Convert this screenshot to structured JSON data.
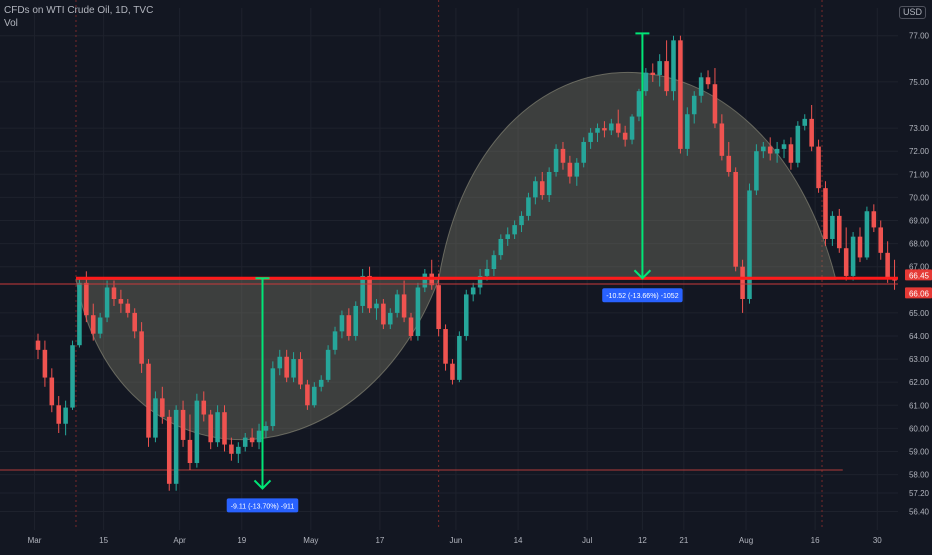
{
  "legend": {
    "title": "CFDs on WTI Crude Oil, 1D, TVC",
    "vol_label": "Vol"
  },
  "currency": "USD",
  "colors": {
    "bg": "#131722",
    "up": "#26a69a",
    "down": "#ef5350",
    "neckline": "#ff1a1a",
    "measure": "#00e676",
    "shape_fill": "#8c8a74",
    "label_bg": "#2962ff",
    "grid": "#1e222d"
  },
  "chart_data": {
    "type": "candlestick",
    "y_axis": {
      "min": 55.6,
      "max": 78.2,
      "ticks": [
        77.0,
        75.0,
        73.0,
        72.0,
        71.0,
        70.0,
        69.0,
        68.0,
        67.0,
        65.0,
        64.0,
        63.0,
        62.0,
        61.0,
        60.0,
        59.0,
        58.0,
        57.2,
        56.4
      ],
      "tick_labels": [
        "77.00",
        "75.00",
        "73.00",
        "72.00",
        "71.00",
        "70.00",
        "69.00",
        "68.00",
        "67.00",
        "65.00",
        "64.00",
        "63.00",
        "62.00",
        "61.00",
        "60.00",
        "59.00",
        "58.00",
        "57.20",
        "56.40"
      ],
      "price_labels": [
        {
          "value": 66.45,
          "text": "66.45"
        },
        {
          "value": 66.06,
          "text": "66.06"
        }
      ]
    },
    "x_axis": {
      "min": -5,
      "max": 125,
      "ticks": [
        {
          "x": 0,
          "label": "Mar"
        },
        {
          "x": 10,
          "label": "15"
        },
        {
          "x": 21,
          "label": "Apr"
        },
        {
          "x": 30,
          "label": "19"
        },
        {
          "x": 40,
          "label": "May"
        },
        {
          "x": 50,
          "label": "17"
        },
        {
          "x": 61,
          "label": "Jun"
        },
        {
          "x": 70,
          "label": "14"
        },
        {
          "x": 80,
          "label": "Jul"
        },
        {
          "x": 88,
          "label": "12"
        },
        {
          "x": 94,
          "label": "21"
        },
        {
          "x": 103,
          "label": "Aug"
        },
        {
          "x": 113,
          "label": "16"
        },
        {
          "x": 122,
          "label": "30"
        }
      ]
    },
    "candles": [
      [
        63.8,
        64.1,
        63.0,
        63.4
      ],
      [
        63.4,
        63.8,
        61.8,
        62.2
      ],
      [
        62.2,
        62.6,
        60.7,
        61.0
      ],
      [
        61.0,
        61.4,
        59.8,
        60.2
      ],
      [
        60.2,
        61.2,
        59.7,
        60.9
      ],
      [
        60.9,
        63.8,
        60.8,
        63.6
      ],
      [
        63.6,
        66.5,
        63.5,
        66.3
      ],
      [
        66.3,
        66.8,
        64.6,
        64.9
      ],
      [
        64.9,
        65.4,
        63.8,
        64.1
      ],
      [
        64.1,
        65.0,
        63.9,
        64.8
      ],
      [
        64.8,
        66.4,
        64.6,
        66.1
      ],
      [
        66.1,
        66.4,
        65.3,
        65.6
      ],
      [
        65.6,
        66.0,
        65.0,
        65.4
      ],
      [
        65.4,
        65.6,
        64.8,
        65.0
      ],
      [
        65.0,
        65.2,
        63.9,
        64.2
      ],
      [
        64.2,
        64.6,
        62.4,
        62.8
      ],
      [
        62.8,
        63.0,
        59.2,
        59.6
      ],
      [
        59.6,
        61.6,
        59.4,
        61.3
      ],
      [
        61.3,
        61.8,
        60.2,
        60.5
      ],
      [
        60.5,
        60.8,
        57.3,
        57.6
      ],
      [
        57.6,
        61.0,
        57.3,
        60.8
      ],
      [
        60.8,
        61.2,
        59.2,
        59.5
      ],
      [
        59.5,
        60.6,
        58.2,
        58.5
      ],
      [
        58.5,
        61.5,
        58.3,
        61.2
      ],
      [
        61.2,
        61.6,
        60.3,
        60.6
      ],
      [
        60.6,
        60.8,
        59.1,
        59.4
      ],
      [
        59.4,
        61.0,
        59.2,
        60.7
      ],
      [
        60.7,
        61.0,
        59.0,
        59.3
      ],
      [
        59.3,
        59.6,
        58.6,
        58.9
      ],
      [
        58.9,
        59.4,
        58.5,
        59.2
      ],
      [
        59.2,
        59.8,
        59.0,
        59.6
      ],
      [
        59.6,
        60.0,
        59.2,
        59.4
      ],
      [
        59.4,
        60.2,
        59.1,
        59.9
      ],
      [
        59.9,
        60.3,
        59.6,
        60.1
      ],
      [
        60.1,
        62.9,
        59.9,
        62.6
      ],
      [
        62.6,
        63.4,
        62.3,
        63.1
      ],
      [
        63.1,
        63.4,
        62.0,
        62.2
      ],
      [
        62.2,
        63.3,
        62.0,
        63.0
      ],
      [
        63.0,
        63.3,
        61.7,
        61.9
      ],
      [
        61.9,
        62.1,
        60.8,
        61.0
      ],
      [
        61.0,
        62.0,
        60.9,
        61.8
      ],
      [
        61.8,
        62.3,
        61.6,
        62.1
      ],
      [
        62.1,
        63.6,
        62.0,
        63.4
      ],
      [
        63.4,
        64.4,
        63.2,
        64.2
      ],
      [
        64.2,
        65.1,
        63.9,
        64.9
      ],
      [
        64.9,
        65.2,
        63.8,
        64.0
      ],
      [
        64.0,
        65.5,
        63.8,
        65.3
      ],
      [
        65.3,
        66.9,
        65.0,
        66.6
      ],
      [
        66.6,
        67.0,
        65.0,
        65.2
      ],
      [
        65.2,
        65.6,
        64.7,
        65.4
      ],
      [
        65.4,
        65.6,
        64.3,
        64.5
      ],
      [
        64.5,
        65.2,
        64.3,
        65.0
      ],
      [
        65.0,
        66.0,
        64.8,
        65.8
      ],
      [
        65.8,
        66.4,
        64.6,
        64.8
      ],
      [
        64.8,
        65.0,
        63.8,
        64.0
      ],
      [
        64.0,
        66.3,
        63.8,
        66.1
      ],
      [
        66.1,
        66.9,
        65.9,
        66.7
      ],
      [
        66.7,
        67.3,
        66.0,
        66.2
      ],
      [
        66.2,
        66.7,
        64.0,
        64.3
      ],
      [
        64.3,
        64.5,
        62.5,
        62.8
      ],
      [
        62.8,
        63.0,
        61.9,
        62.1
      ],
      [
        62.1,
        64.2,
        62.0,
        64.0
      ],
      [
        64.0,
        66.0,
        63.8,
        65.8
      ],
      [
        65.8,
        66.3,
        65.5,
        66.1
      ],
      [
        66.1,
        66.9,
        65.8,
        66.6
      ],
      [
        66.6,
        67.3,
        66.4,
        66.9
      ],
      [
        66.9,
        67.7,
        66.6,
        67.5
      ],
      [
        67.5,
        68.4,
        67.3,
        68.2
      ],
      [
        68.2,
        68.7,
        67.9,
        68.4
      ],
      [
        68.4,
        69.0,
        68.2,
        68.8
      ],
      [
        68.8,
        69.4,
        68.5,
        69.2
      ],
      [
        69.2,
        70.2,
        69.0,
        70.0
      ],
      [
        70.0,
        70.9,
        69.7,
        70.7
      ],
      [
        70.7,
        71.1,
        69.9,
        70.1
      ],
      [
        70.1,
        71.3,
        69.8,
        71.1
      ],
      [
        71.1,
        72.3,
        70.9,
        72.1
      ],
      [
        72.1,
        72.4,
        71.2,
        71.5
      ],
      [
        71.5,
        71.8,
        70.6,
        70.9
      ],
      [
        70.9,
        71.7,
        70.5,
        71.5
      ],
      [
        71.5,
        72.6,
        71.3,
        72.4
      ],
      [
        72.4,
        73.0,
        72.1,
        72.8
      ],
      [
        72.8,
        73.2,
        72.4,
        73.0
      ],
      [
        73.0,
        73.3,
        72.6,
        72.9
      ],
      [
        72.9,
        73.4,
        72.7,
        73.2
      ],
      [
        73.2,
        73.8,
        72.6,
        72.8
      ],
      [
        72.8,
        73.1,
        72.2,
        72.5
      ],
      [
        72.5,
        73.6,
        72.3,
        73.5
      ],
      [
        73.5,
        74.7,
        73.3,
        74.6
      ],
      [
        74.6,
        75.6,
        74.4,
        75.4
      ],
      [
        75.4,
        75.8,
        75.0,
        75.3
      ],
      [
        75.3,
        76.2,
        74.8,
        75.9
      ],
      [
        75.9,
        76.8,
        74.4,
        74.6
      ],
      [
        74.6,
        77.0,
        74.2,
        76.8
      ],
      [
        76.8,
        77.0,
        71.9,
        72.1
      ],
      [
        72.1,
        73.9,
        71.8,
        73.6
      ],
      [
        73.6,
        74.6,
        73.2,
        74.4
      ],
      [
        74.4,
        75.4,
        74.1,
        75.2
      ],
      [
        75.2,
        75.5,
        74.7,
        74.9
      ],
      [
        74.9,
        75.6,
        73.0,
        73.2
      ],
      [
        73.2,
        73.6,
        71.6,
        71.8
      ],
      [
        71.8,
        72.4,
        70.9,
        71.1
      ],
      [
        71.1,
        71.3,
        66.8,
        67.0
      ],
      [
        67.0,
        67.3,
        65.0,
        65.6
      ],
      [
        65.6,
        70.6,
        65.4,
        70.3
      ],
      [
        70.3,
        72.3,
        70.1,
        72.0
      ],
      [
        72.0,
        72.4,
        71.7,
        72.2
      ],
      [
        72.2,
        72.6,
        71.6,
        71.9
      ],
      [
        71.9,
        72.4,
        71.5,
        72.1
      ],
      [
        72.1,
        72.5,
        71.7,
        72.3
      ],
      [
        72.3,
        72.6,
        71.2,
        71.5
      ],
      [
        71.5,
        73.3,
        71.3,
        73.1
      ],
      [
        73.1,
        73.6,
        72.9,
        73.4
      ],
      [
        73.4,
        74.0,
        72.0,
        72.2
      ],
      [
        72.2,
        72.5,
        70.2,
        70.4
      ],
      [
        70.4,
        70.7,
        67.9,
        68.2
      ],
      [
        68.2,
        69.4,
        67.9,
        69.2
      ],
      [
        69.2,
        69.5,
        67.6,
        67.8
      ],
      [
        67.8,
        68.7,
        66.4,
        66.6
      ],
      [
        66.6,
        68.5,
        66.4,
        68.3
      ],
      [
        68.3,
        68.7,
        67.2,
        67.4
      ],
      [
        67.4,
        69.6,
        67.3,
        69.4
      ],
      [
        69.4,
        69.7,
        68.5,
        68.7
      ],
      [
        68.7,
        69.0,
        67.3,
        67.6
      ],
      [
        67.6,
        68.1,
        66.3,
        66.5
      ],
      [
        66.5,
        67.3,
        66.0,
        66.4
      ]
    ],
    "neckline": {
      "x1": 6,
      "y1": 66.5,
      "x2": 125,
      "y2": 66.5
    },
    "neckline_2": {
      "x1": -5,
      "y1": 66.25,
      "x2": 125,
      "y2": 66.25
    },
    "support_line": {
      "x1": -5,
      "y1": 58.2,
      "x2": 117,
      "y2": 58.2
    },
    "cup_shape": {
      "x_start": 6,
      "x_end": 116,
      "y_base": 66.45,
      "bottom_y": 57.5,
      "top_y": 77.1,
      "cross_x": 58.5
    },
    "measures": [
      {
        "x": 33,
        "from": 66.5,
        "to": 57.4,
        "label": "-9.11 (-13.70%) -911"
      },
      {
        "x": 88,
        "from": 77.1,
        "to": 66.5,
        "label": "-10.52 (-13.66%) -1052"
      }
    ],
    "session_lines": [
      6,
      58.5,
      114
    ]
  }
}
